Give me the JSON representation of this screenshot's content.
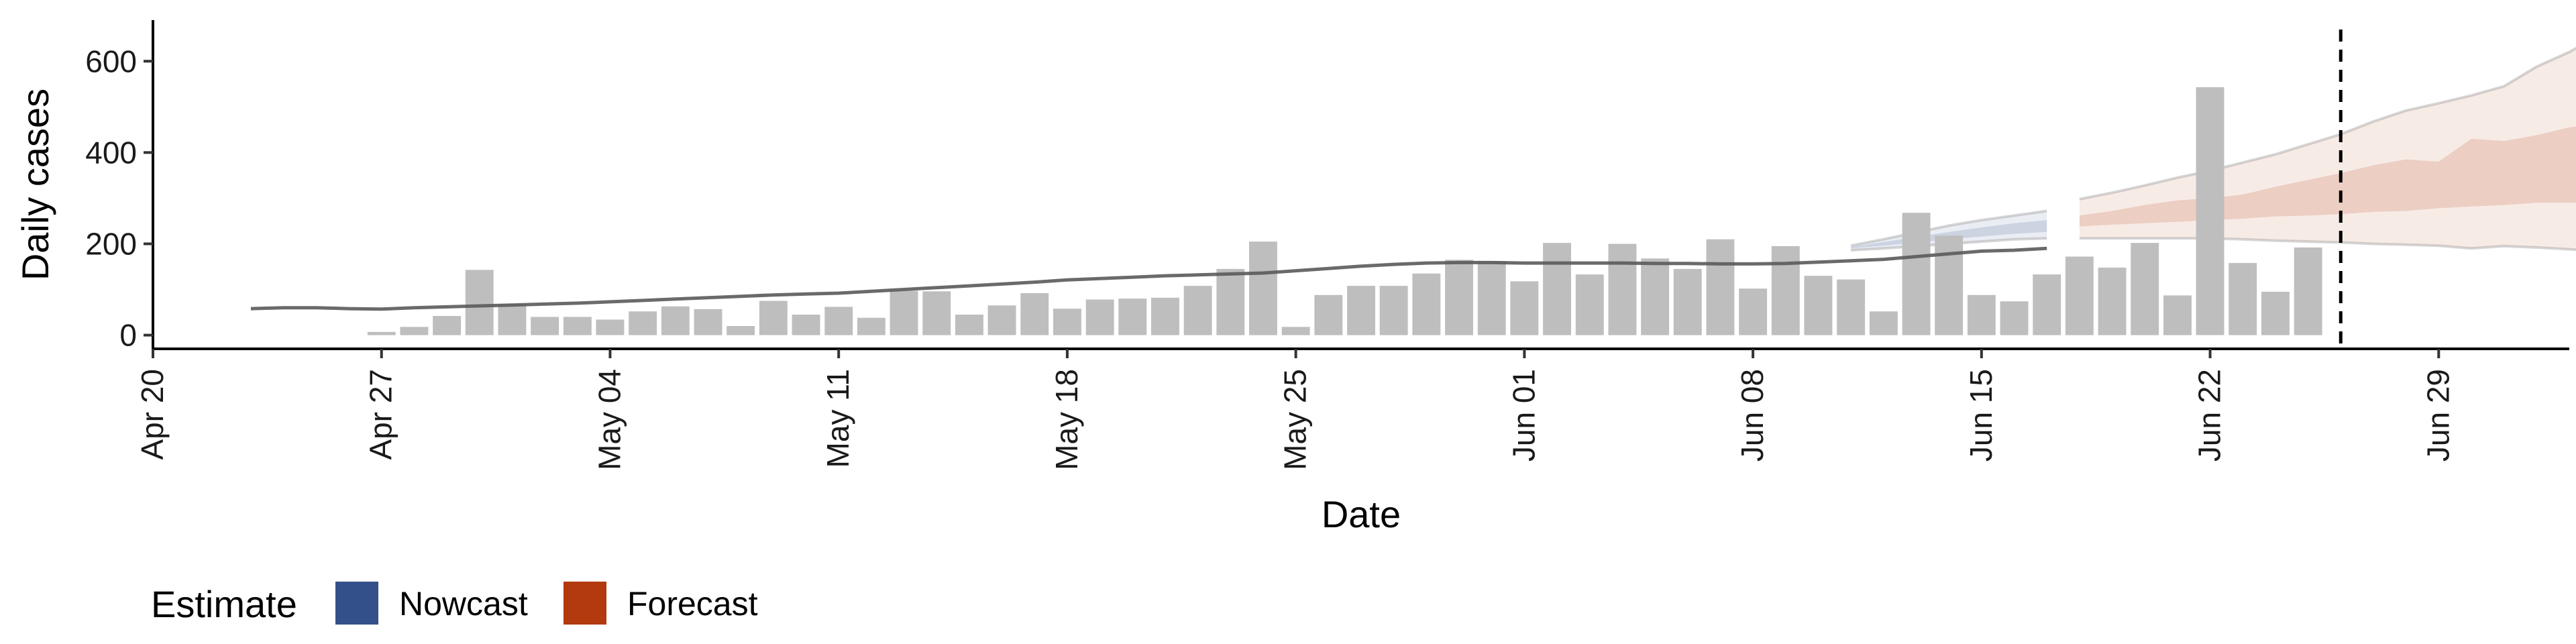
{
  "chart_data": {
    "type": "bar",
    "xlabel": "Date",
    "ylabel": "Daily cases",
    "ylim": [
      -30,
      690
    ],
    "y_ticks": [
      0,
      200,
      400,
      600
    ],
    "x_tick_labels": [
      "Apr 20",
      "Apr 27",
      "May 04",
      "May 11",
      "May 18",
      "May 25",
      "Jun 01",
      "Jun 08",
      "Jun 15",
      "Jun 22",
      "Jun 29"
    ],
    "x_tick_dates": [
      "2020-04-20",
      "2020-04-27",
      "2020-05-04",
      "2020-05-11",
      "2020-05-18",
      "2020-05-25",
      "2020-06-01",
      "2020-06-08",
      "2020-06-15",
      "2020-06-22",
      "2020-06-29"
    ],
    "xlim": [
      "2020-04-20",
      "2020-07-03"
    ],
    "bar_color": "#bebebe",
    "bars": {
      "start_date": "2020-04-27",
      "values": [
        7,
        18,
        42,
        143,
        68,
        40,
        40,
        34,
        52,
        63,
        57,
        20,
        75,
        45,
        62,
        38,
        97,
        96,
        45,
        65,
        92,
        58,
        78,
        80,
        82,
        108,
        145,
        205,
        18,
        88,
        108,
        108,
        135,
        165,
        162,
        118,
        202,
        133,
        200,
        168,
        145,
        210,
        102,
        195,
        130,
        122,
        52,
        268,
        218,
        88,
        74,
        133,
        172,
        148,
        202,
        87,
        543,
        158,
        95,
        192
      ]
    },
    "series": [
      {
        "name": "",
        "kind": "trend",
        "color": "#5a5a5a",
        "start_date": "2020-04-23",
        "values": [
          58,
          60,
          60,
          58,
          57,
          60,
          62,
          64,
          66,
          68,
          70,
          73,
          76,
          79,
          82,
          85,
          88,
          90,
          92,
          96,
          100,
          104,
          108,
          112,
          116,
          121,
          124,
          127,
          130,
          132,
          134,
          136,
          141,
          146,
          151,
          155,
          158,
          159,
          159,
          158,
          158,
          158,
          158,
          157,
          157,
          156,
          156,
          157,
          160,
          163,
          166,
          172,
          178,
          184,
          186,
          190
        ]
      },
      {
        "name": "Nowcast",
        "kind": "band",
        "color": "#33508a",
        "start_date": "2020-06-11",
        "outer_low": [
          186,
          190,
          195,
          200,
          205,
          210,
          212
        ],
        "outer_high": [
          196,
          210,
          225,
          240,
          252,
          262,
          272
        ],
        "inner_low": [
          190,
          196,
          203,
          210,
          216,
          222,
          226
        ],
        "inner_high": [
          193,
          204,
          215,
          226,
          236,
          245,
          252
        ]
      },
      {
        "name": "Forecast",
        "kind": "band",
        "color": "#b23a0e",
        "start_date": "2020-06-18",
        "outer_low": [
          212,
          212,
          212,
          212,
          212,
          210,
          207,
          205,
          203,
          200,
          198,
          196,
          190,
          195,
          192,
          188,
          183
        ],
        "outer_high": [
          298,
          312,
          328,
          345,
          360,
          378,
          396,
          418,
          440,
          468,
          492,
          508,
          525,
          545,
          588,
          620,
          660
        ],
        "inner_low": [
          238,
          242,
          245,
          248,
          252,
          255,
          260,
          262,
          265,
          270,
          272,
          278,
          282,
          285,
          290,
          290,
          290
        ],
        "inner_high": [
          262,
          272,
          285,
          295,
          300,
          308,
          325,
          340,
          355,
          372,
          385,
          380,
          430,
          425,
          438,
          455,
          466
        ]
      }
    ],
    "vline_date": "2020-06-26",
    "legend": {
      "title": "Estimate",
      "position": "bottom-left",
      "items": [
        {
          "label": "Nowcast",
          "color": "#33508a"
        },
        {
          "label": "Forecast",
          "color": "#b23a0e"
        }
      ]
    },
    "grid": false
  }
}
